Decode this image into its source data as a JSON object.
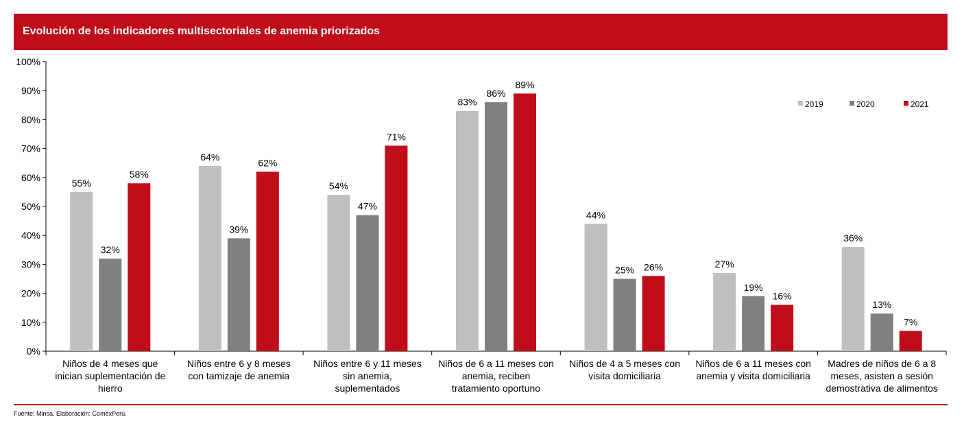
{
  "header": {
    "title": "Evolución de los indicadores multisectoriales de anemia priorizados"
  },
  "footer": {
    "source": "Fuente: Minsa. Elaboración: ComexPerú."
  },
  "chart_data": {
    "type": "bar",
    "title": "Evolución de los indicadores multisectoriales de anemia priorizados",
    "xlabel": "",
    "ylabel": "",
    "ylim": [
      0,
      100
    ],
    "yticks": [
      "0%",
      "10%",
      "20%",
      "30%",
      "40%",
      "50%",
      "60%",
      "70%",
      "80%",
      "90%",
      "100%"
    ],
    "grid": false,
    "legend_position": "top-right",
    "categories": [
      [
        "Niños de 4 meses que",
        "inician suplementación de",
        "hierro"
      ],
      [
        "Niños entre 6 y 8 meses",
        "con tamizaje de anemia"
      ],
      [
        "Niños entre 6 y 11 meses",
        "sin anemia,",
        "suplementados"
      ],
      [
        "Niños de 6 a 11 meses con",
        "anemia, reciben",
        "tratamiento oportuno"
      ],
      [
        "Niños de 4 a 5 meses con",
        "visita domiciliaria"
      ],
      [
        "Niños de 6 a 11 meses con",
        "anemia y visita domiciliaria"
      ],
      [
        "Madres de niños de 6 a 8",
        "meses, asisten a sesión",
        "demostrativa de alimentos"
      ]
    ],
    "series": [
      {
        "name": "2019",
        "color": "#bfbfbf",
        "values": [
          55,
          64,
          54,
          83,
          44,
          27,
          36
        ],
        "labels": [
          "55%",
          "64%",
          "54%",
          "83%",
          "44%",
          "27%",
          "36%"
        ]
      },
      {
        "name": "2020",
        "color": "#808080",
        "values": [
          32,
          39,
          47,
          86,
          25,
          19,
          13
        ],
        "labels": [
          "32%",
          "39%",
          "47%",
          "86%",
          "25%",
          "19%",
          "13%"
        ]
      },
      {
        "name": "2021",
        "color": "#c00d1a",
        "values": [
          58,
          62,
          71,
          89,
          26,
          16,
          7
        ],
        "labels": [
          "58%",
          "62%",
          "71%",
          "89%",
          "26%",
          "16%",
          "7%"
        ]
      }
    ]
  }
}
